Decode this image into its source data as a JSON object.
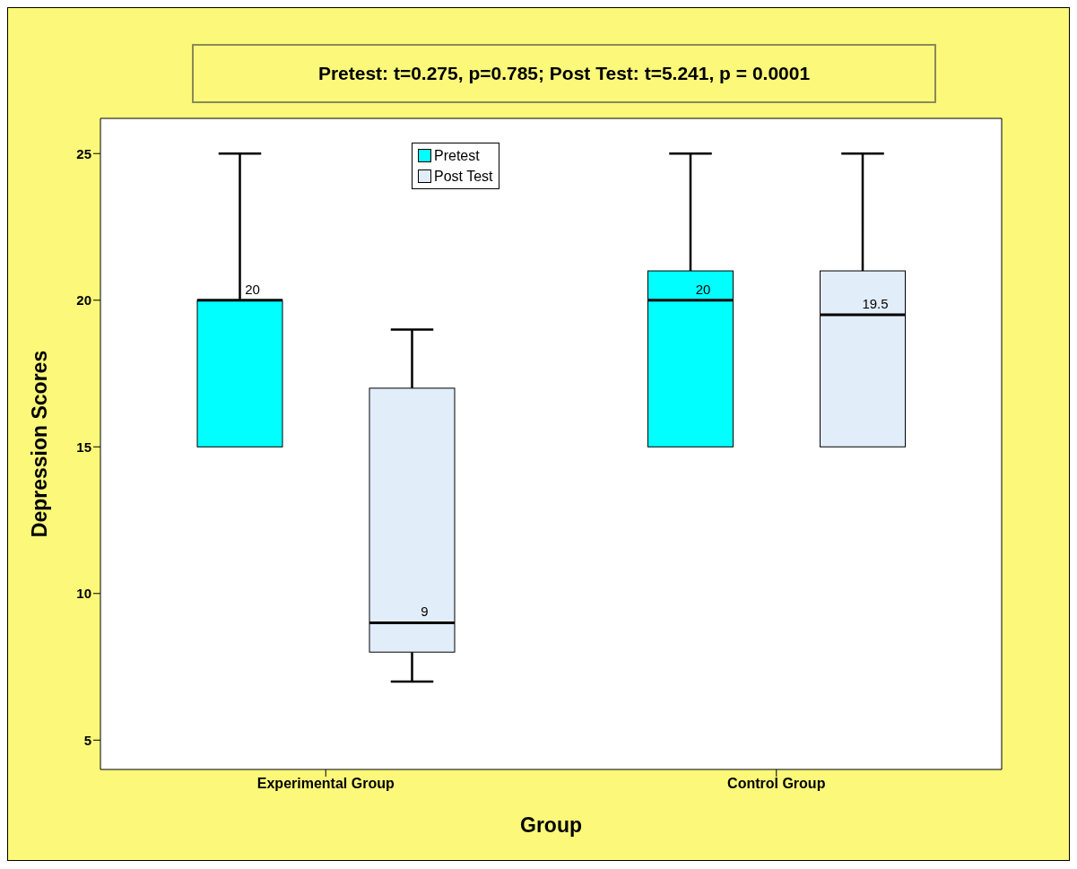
{
  "chart_data": {
    "type": "box",
    "title": "Pretest: t=0.275, p=0.785; Post Test: t=5.241, p = 0.0001",
    "xlabel": "Group",
    "ylabel": "Depression Scores",
    "categories": [
      "Experimental Group",
      "Control Group"
    ],
    "series": [
      {
        "name": "Pretest",
        "color": "#00ffff",
        "value_labels": [
          "20",
          "20"
        ],
        "boxes": [
          {
            "low": 15,
            "q1": 15,
            "median": 20,
            "q3": 20,
            "high": 25
          },
          {
            "low": 15,
            "q1": 15,
            "median": 20,
            "q3": 21,
            "high": 25
          }
        ]
      },
      {
        "name": "Post Test",
        "color": "#e2edfa",
        "value_labels": [
          "9",
          "19.5"
        ],
        "boxes": [
          {
            "low": 7,
            "q1": 8,
            "median": 9,
            "q3": 17,
            "high": 19
          },
          {
            "low": 15,
            "q1": 15,
            "median": 19.5,
            "q3": 21,
            "high": 25
          }
        ]
      }
    ],
    "ylim": [
      4,
      26.2
    ],
    "yticks": [
      5,
      10,
      15,
      20,
      25
    ],
    "grid": false,
    "legend": "top"
  }
}
